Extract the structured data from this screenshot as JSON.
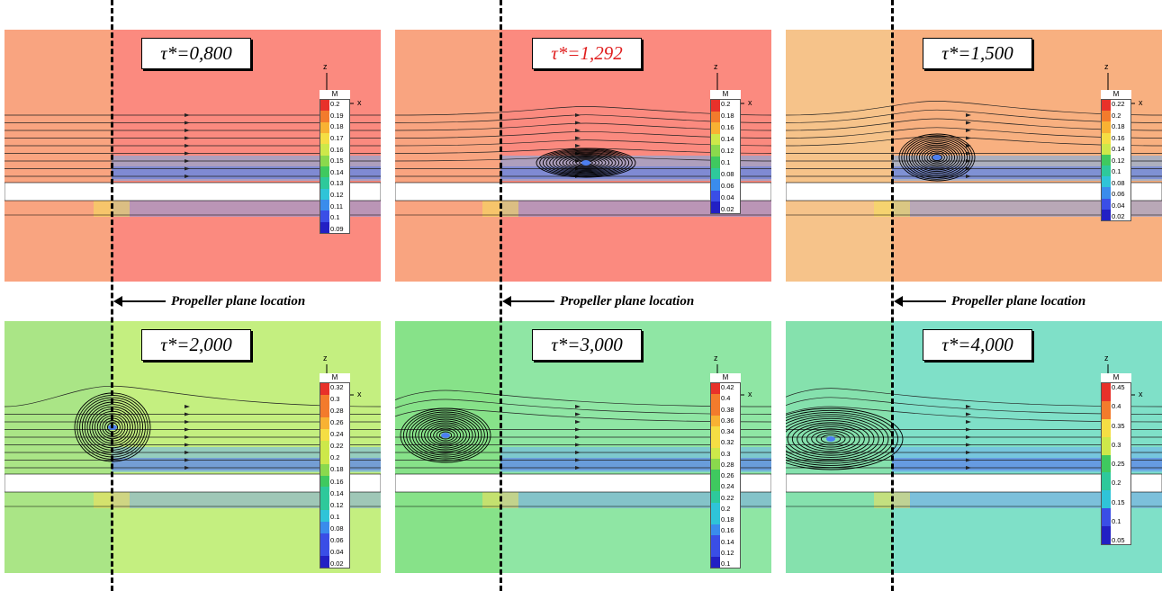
{
  "figure": {
    "annotation_text": "Propeller plane location",
    "legend_title": "M",
    "axis_z": "z",
    "axis_x": "x"
  },
  "panels": [
    {
      "tau": "τ*=0,800",
      "tau_color": "#000000",
      "ticks": [
        "0.2",
        "0.19",
        "0.18",
        "0.17",
        "0.16",
        "0.15",
        "0.14",
        "0.13",
        "0.12",
        "0.11",
        "0.1",
        "0.09"
      ],
      "background": "#fb8a7f",
      "left_band": "#f8a880",
      "vortex": "none"
    },
    {
      "tau": "τ*=1,292",
      "tau_color": "#e02020",
      "ticks": [
        "0.2",
        "0.18",
        "0.16",
        "0.14",
        "0.12",
        "0.1",
        "0.08",
        "0.06",
        "0.04",
        "0.02"
      ],
      "background": "#fb8a7f",
      "left_band": "#f8a880",
      "vortex": "small"
    },
    {
      "tau": "τ*=1,500",
      "tau_color": "#000000",
      "ticks": [
        "0.22",
        "0.2",
        "0.18",
        "0.16",
        "0.14",
        "0.12",
        "0.1",
        "0.08",
        "0.06",
        "0.04",
        "0.02"
      ],
      "background": "#f8b080",
      "left_band": "#f6c78c",
      "vortex": "medium"
    },
    {
      "tau": "τ*=2,000",
      "tau_color": "#000000",
      "ticks": [
        "0.32",
        "0.3",
        "0.28",
        "0.26",
        "0.24",
        "0.22",
        "0.2",
        "0.18",
        "0.16",
        "0.14",
        "0.12",
        "0.1",
        "0.08",
        "0.06",
        "0.04",
        "0.02"
      ],
      "background": "#c4ef80",
      "left_band": "#a6e387",
      "vortex": "large"
    },
    {
      "tau": "τ*=3,000",
      "tau_color": "#000000",
      "ticks": [
        "0.42",
        "0.4",
        "0.38",
        "0.36",
        "0.34",
        "0.32",
        "0.3",
        "0.28",
        "0.26",
        "0.24",
        "0.22",
        "0.2",
        "0.18",
        "0.16",
        "0.14",
        "0.12",
        "0.1"
      ],
      "background": "#8fe6a4",
      "left_band": "#86e085",
      "vortex": "xlarge"
    },
    {
      "tau": "τ*=4,000",
      "tau_color": "#000000",
      "ticks": [
        "0.45",
        "0.4",
        "0.35",
        "0.3",
        "0.25",
        "0.2",
        "0.15",
        "0.1",
        "0.05"
      ],
      "background": "#7fe0c8",
      "left_band": "#86e0a8",
      "vortex": "xxlarge"
    }
  ]
}
